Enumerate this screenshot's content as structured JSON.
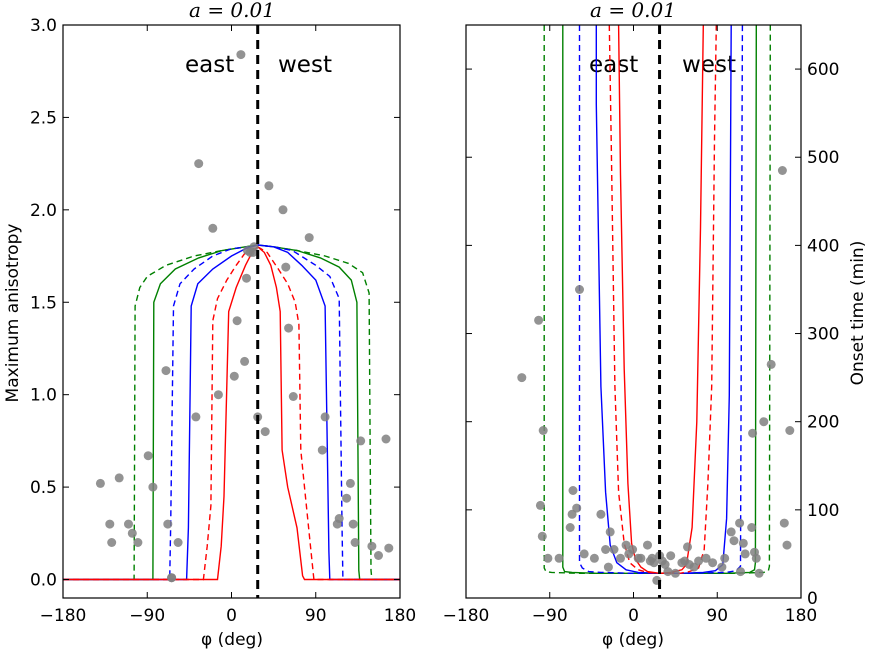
{
  "chart_data": [
    {
      "type": "line",
      "title": "a = 0.01",
      "xlabel": "φ (deg)",
      "ylabel": "Maximum anisotropy",
      "xlim": [
        -180,
        180
      ],
      "ylim": [
        -0.1,
        3.0
      ],
      "xticks": [
        "−180",
        "−90",
        "0",
        "90",
        "180"
      ],
      "yticks": [
        "0.0",
        "0.5",
        "1.0",
        "1.5",
        "2.0",
        "2.5",
        "3.0"
      ],
      "annotations": [
        "east",
        "west"
      ],
      "dashed_vertical_x": 28,
      "series": [
        {
          "color": "#008000",
          "style": "dashed",
          "points": [
            [
              -180,
              0
            ],
            [
              -104,
              0
            ],
            [
              -103,
              1.48
            ],
            [
              -98,
              1.58
            ],
            [
              -90,
              1.64
            ],
            [
              -70,
              1.7
            ],
            [
              -40,
              1.75
            ],
            [
              -10,
              1.78
            ],
            [
              15,
              1.8
            ],
            [
              28,
              1.81
            ],
            [
              45,
              1.8
            ],
            [
              70,
              1.78
            ],
            [
              100,
              1.75
            ],
            [
              125,
              1.71
            ],
            [
              140,
              1.66
            ],
            [
              147,
              1.55
            ],
            [
              149,
              0.05
            ],
            [
              150,
              0
            ],
            [
              180,
              0
            ]
          ]
        },
        {
          "color": "#008000",
          "style": "solid",
          "points": [
            [
              -180,
              0
            ],
            [
              -84,
              0
            ],
            [
              -83,
              1.5
            ],
            [
              -76,
              1.6
            ],
            [
              -60,
              1.68
            ],
            [
              -35,
              1.74
            ],
            [
              -10,
              1.78
            ],
            [
              15,
              1.8
            ],
            [
              28,
              1.81
            ],
            [
              45,
              1.8
            ],
            [
              70,
              1.78
            ],
            [
              95,
              1.74
            ],
            [
              115,
              1.69
            ],
            [
              128,
              1.62
            ],
            [
              134,
              1.5
            ],
            [
              136,
              0.05
            ],
            [
              137,
              0
            ],
            [
              180,
              0
            ]
          ]
        },
        {
          "color": "#0000ff",
          "style": "dashed",
          "points": [
            [
              -180,
              0
            ],
            [
              -66,
              0
            ],
            [
              -65,
              0.3
            ],
            [
              -62,
              1.48
            ],
            [
              -55,
              1.6
            ],
            [
              -40,
              1.68
            ],
            [
              -20,
              1.75
            ],
            [
              0,
              1.79
            ],
            [
              20,
              1.8
            ],
            [
              28,
              1.81
            ],
            [
              45,
              1.8
            ],
            [
              65,
              1.78
            ],
            [
              90,
              1.7
            ],
            [
              105,
              1.64
            ],
            [
              115,
              1.52
            ],
            [
              118,
              0.3
            ],
            [
              119,
              0
            ],
            [
              180,
              0
            ]
          ]
        },
        {
          "color": "#0000ff",
          "style": "solid",
          "points": [
            [
              -180,
              0
            ],
            [
              -48,
              0
            ],
            [
              -46,
              0.28
            ],
            [
              -43,
              1.48
            ],
            [
              -36,
              1.6
            ],
            [
              -20,
              1.68
            ],
            [
              0,
              1.75
            ],
            [
              15,
              1.79
            ],
            [
              28,
              1.81
            ],
            [
              45,
              1.8
            ],
            [
              60,
              1.77
            ],
            [
              75,
              1.7
            ],
            [
              90,
              1.62
            ],
            [
              100,
              1.48
            ],
            [
              104,
              0.15
            ],
            [
              105,
              0
            ],
            [
              180,
              0
            ]
          ]
        },
        {
          "color": "#ff0000",
          "style": "dashed",
          "points": [
            [
              -180,
              0
            ],
            [
              -30,
              0
            ],
            [
              -26,
              0.18
            ],
            [
              -22,
              0.4
            ],
            [
              -20,
              1.4
            ],
            [
              -15,
              1.52
            ],
            [
              -5,
              1.62
            ],
            [
              5,
              1.7
            ],
            [
              15,
              1.77
            ],
            [
              28,
              1.8
            ],
            [
              38,
              1.77
            ],
            [
              50,
              1.68
            ],
            [
              60,
              1.6
            ],
            [
              68,
              1.5
            ],
            [
              72,
              1.38
            ],
            [
              74,
              0.7
            ],
            [
              78,
              0.5
            ],
            [
              84,
              0.2
            ],
            [
              88,
              0
            ],
            [
              180,
              0
            ]
          ]
        },
        {
          "color": "#ff0000",
          "style": "solid",
          "points": [
            [
              -180,
              0
            ],
            [
              -15,
              0
            ],
            [
              -11,
              0.18
            ],
            [
              -8,
              0.45
            ],
            [
              -3,
              1.45
            ],
            [
              5,
              1.58
            ],
            [
              15,
              1.7
            ],
            [
              22,
              1.77
            ],
            [
              28,
              1.8
            ],
            [
              35,
              1.77
            ],
            [
              42,
              1.7
            ],
            [
              48,
              1.58
            ],
            [
              52,
              1.45
            ],
            [
              54,
              0.7
            ],
            [
              60,
              0.5
            ],
            [
              70,
              0.28
            ],
            [
              76,
              0.02
            ],
            [
              78,
              0
            ],
            [
              180,
              0
            ]
          ]
        }
      ],
      "points_x": [
        -140,
        -130,
        -120,
        -128,
        -110,
        -106,
        -100,
        -89,
        -84,
        -70,
        -68,
        -64,
        -64,
        -57,
        -38,
        -35,
        -20,
        -14,
        3,
        6,
        10,
        14,
        16,
        17,
        20,
        23,
        24,
        28,
        36,
        40,
        55,
        58,
        61,
        66,
        83,
        97,
        100,
        113,
        115,
        123,
        127,
        130,
        132,
        138,
        150,
        157,
        165,
        168
      ],
      "points_y": [
        0.52,
        0.3,
        0.55,
        0.2,
        0.3,
        0.25,
        0.2,
        0.67,
        0.5,
        1.13,
        0.3,
        0.01,
        0.01,
        0.2,
        0.88,
        2.25,
        1.9,
        1.0,
        1.1,
        1.4,
        2.84,
        1.18,
        1.63,
        1.78,
        1.77,
        1.77,
        1.8,
        0.88,
        0.8,
        2.13,
        2.0,
        1.69,
        1.36,
        0.99,
        1.85,
        0.7,
        0.88,
        0.3,
        0.33,
        0.44,
        0.52,
        0.3,
        0.2,
        0.75,
        0.18,
        0.13,
        0.76,
        0.17
      ]
    },
    {
      "type": "line",
      "title": "a = 0.01",
      "xlabel": "φ (deg)",
      "ylabel": "Onset time (min)",
      "xlim": [
        -180,
        180
      ],
      "ylim": [
        0,
        650
      ],
      "xticks": [
        "−180",
        "−90",
        "0",
        "90",
        "180"
      ],
      "yticks": [
        "0",
        "100",
        "200",
        "300",
        "400",
        "500",
        "600"
      ],
      "annotations": [
        "east",
        "west"
      ],
      "dashed_vertical_x": 28,
      "series": [
        {
          "color": "#008000",
          "style": "dashed",
          "points": [
            [
              -96,
              650
            ],
            [
              -96,
              34
            ],
            [
              -94,
              30
            ],
            [
              -88,
              29
            ],
            [
              -60,
              28
            ],
            [
              0,
              28
            ],
            [
              28,
              28
            ],
            [
              60,
              28
            ],
            [
              110,
              28
            ],
            [
              140,
              29
            ],
            [
              145,
              31
            ],
            [
              146,
              36
            ],
            [
              147,
              650
            ]
          ]
        },
        {
          "color": "#008000",
          "style": "solid",
          "points": [
            [
              -76,
              650
            ],
            [
              -76,
              35
            ],
            [
              -74,
              30
            ],
            [
              -66,
              29
            ],
            [
              -40,
              28
            ],
            [
              0,
              28
            ],
            [
              28,
              28
            ],
            [
              60,
              28
            ],
            [
              100,
              28
            ],
            [
              125,
              29
            ],
            [
              130,
              32
            ],
            [
              131,
              40
            ],
            [
              132,
              650
            ]
          ]
        },
        {
          "color": "#0000ff",
          "style": "dashed",
          "points": [
            [
              -58,
              650
            ],
            [
              -58,
              40
            ],
            [
              -55,
              34
            ],
            [
              -48,
              30
            ],
            [
              -35,
              29
            ],
            [
              0,
              28
            ],
            [
              28,
              28
            ],
            [
              60,
              28
            ],
            [
              100,
              29
            ],
            [
              110,
              31
            ],
            [
              115,
              36
            ],
            [
              117,
              650
            ]
          ]
        },
        {
          "color": "#0000ff",
          "style": "solid",
          "points": [
            [
              -40,
              650
            ],
            [
              -40,
              560
            ],
            [
              -35,
              240
            ],
            [
              -30,
              120
            ],
            [
              -25,
              60
            ],
            [
              -18,
              40
            ],
            [
              -8,
              32
            ],
            [
              5,
              29
            ],
            [
              28,
              28
            ],
            [
              50,
              28
            ],
            [
              75,
              29
            ],
            [
              88,
              31
            ],
            [
              96,
              38
            ],
            [
              100,
              90
            ],
            [
              103,
              230
            ],
            [
              105,
              650
            ]
          ]
        },
        {
          "color": "#ff0000",
          "style": "dashed",
          "points": [
            [
              -26,
              650
            ],
            [
              -24,
              520
            ],
            [
              -20,
              240
            ],
            [
              -16,
              120
            ],
            [
              -10,
              62
            ],
            [
              -4,
              40
            ],
            [
              5,
              32
            ],
            [
              15,
              29
            ],
            [
              28,
              28
            ],
            [
              50,
              28
            ],
            [
              60,
              30
            ],
            [
              70,
              34
            ],
            [
              76,
              55
            ],
            [
              80,
              130
            ],
            [
              84,
              240
            ],
            [
              87,
              520
            ],
            [
              89,
              650
            ]
          ]
        },
        {
          "color": "#ff0000",
          "style": "solid",
          "points": [
            [
              -16,
              650
            ],
            [
              -14,
              480
            ],
            [
              -10,
              260
            ],
            [
              -6,
              130
            ],
            [
              -2,
              62
            ],
            [
              2,
              44
            ],
            [
              8,
              35
            ],
            [
              15,
              30
            ],
            [
              28,
              28
            ],
            [
              40,
              29
            ],
            [
              52,
              32
            ],
            [
              57,
              38
            ],
            [
              63,
              80
            ],
            [
              68,
              200
            ],
            [
              72,
              420
            ],
            [
              75,
              650
            ]
          ]
        }
      ],
      "points_x": [
        -120,
        -102,
        -100,
        -98,
        -97,
        -92,
        -80,
        -68,
        -66,
        -65,
        -61,
        -58,
        -53,
        -42,
        -35,
        -30,
        -27,
        -25,
        -21,
        -14,
        -8,
        -5,
        -1,
        5,
        8,
        15,
        18,
        20,
        22,
        25,
        28,
        31,
        34,
        37,
        40,
        45,
        52,
        55,
        58,
        60,
        65,
        70,
        78,
        85,
        95,
        98,
        105,
        108,
        114,
        115,
        118,
        120,
        127,
        128,
        130,
        132,
        135,
        140,
        148,
        160,
        162,
        165,
        168
      ],
      "points_y": [
        250,
        315,
        105,
        70,
        190,
        45,
        45,
        80,
        95,
        122,
        102,
        350,
        50,
        45,
        95,
        55,
        35,
        75,
        55,
        45,
        60,
        50,
        55,
        45,
        45,
        60,
        42,
        45,
        40,
        20,
        48,
        42,
        38,
        30,
        48,
        28,
        40,
        42,
        58,
        38,
        35,
        42,
        45,
        40,
        35,
        45,
        75,
        65,
        85,
        30,
        62,
        50,
        80,
        187,
        52,
        45,
        28,
        200,
        265,
        485,
        85,
        60,
        190
      ]
    }
  ]
}
